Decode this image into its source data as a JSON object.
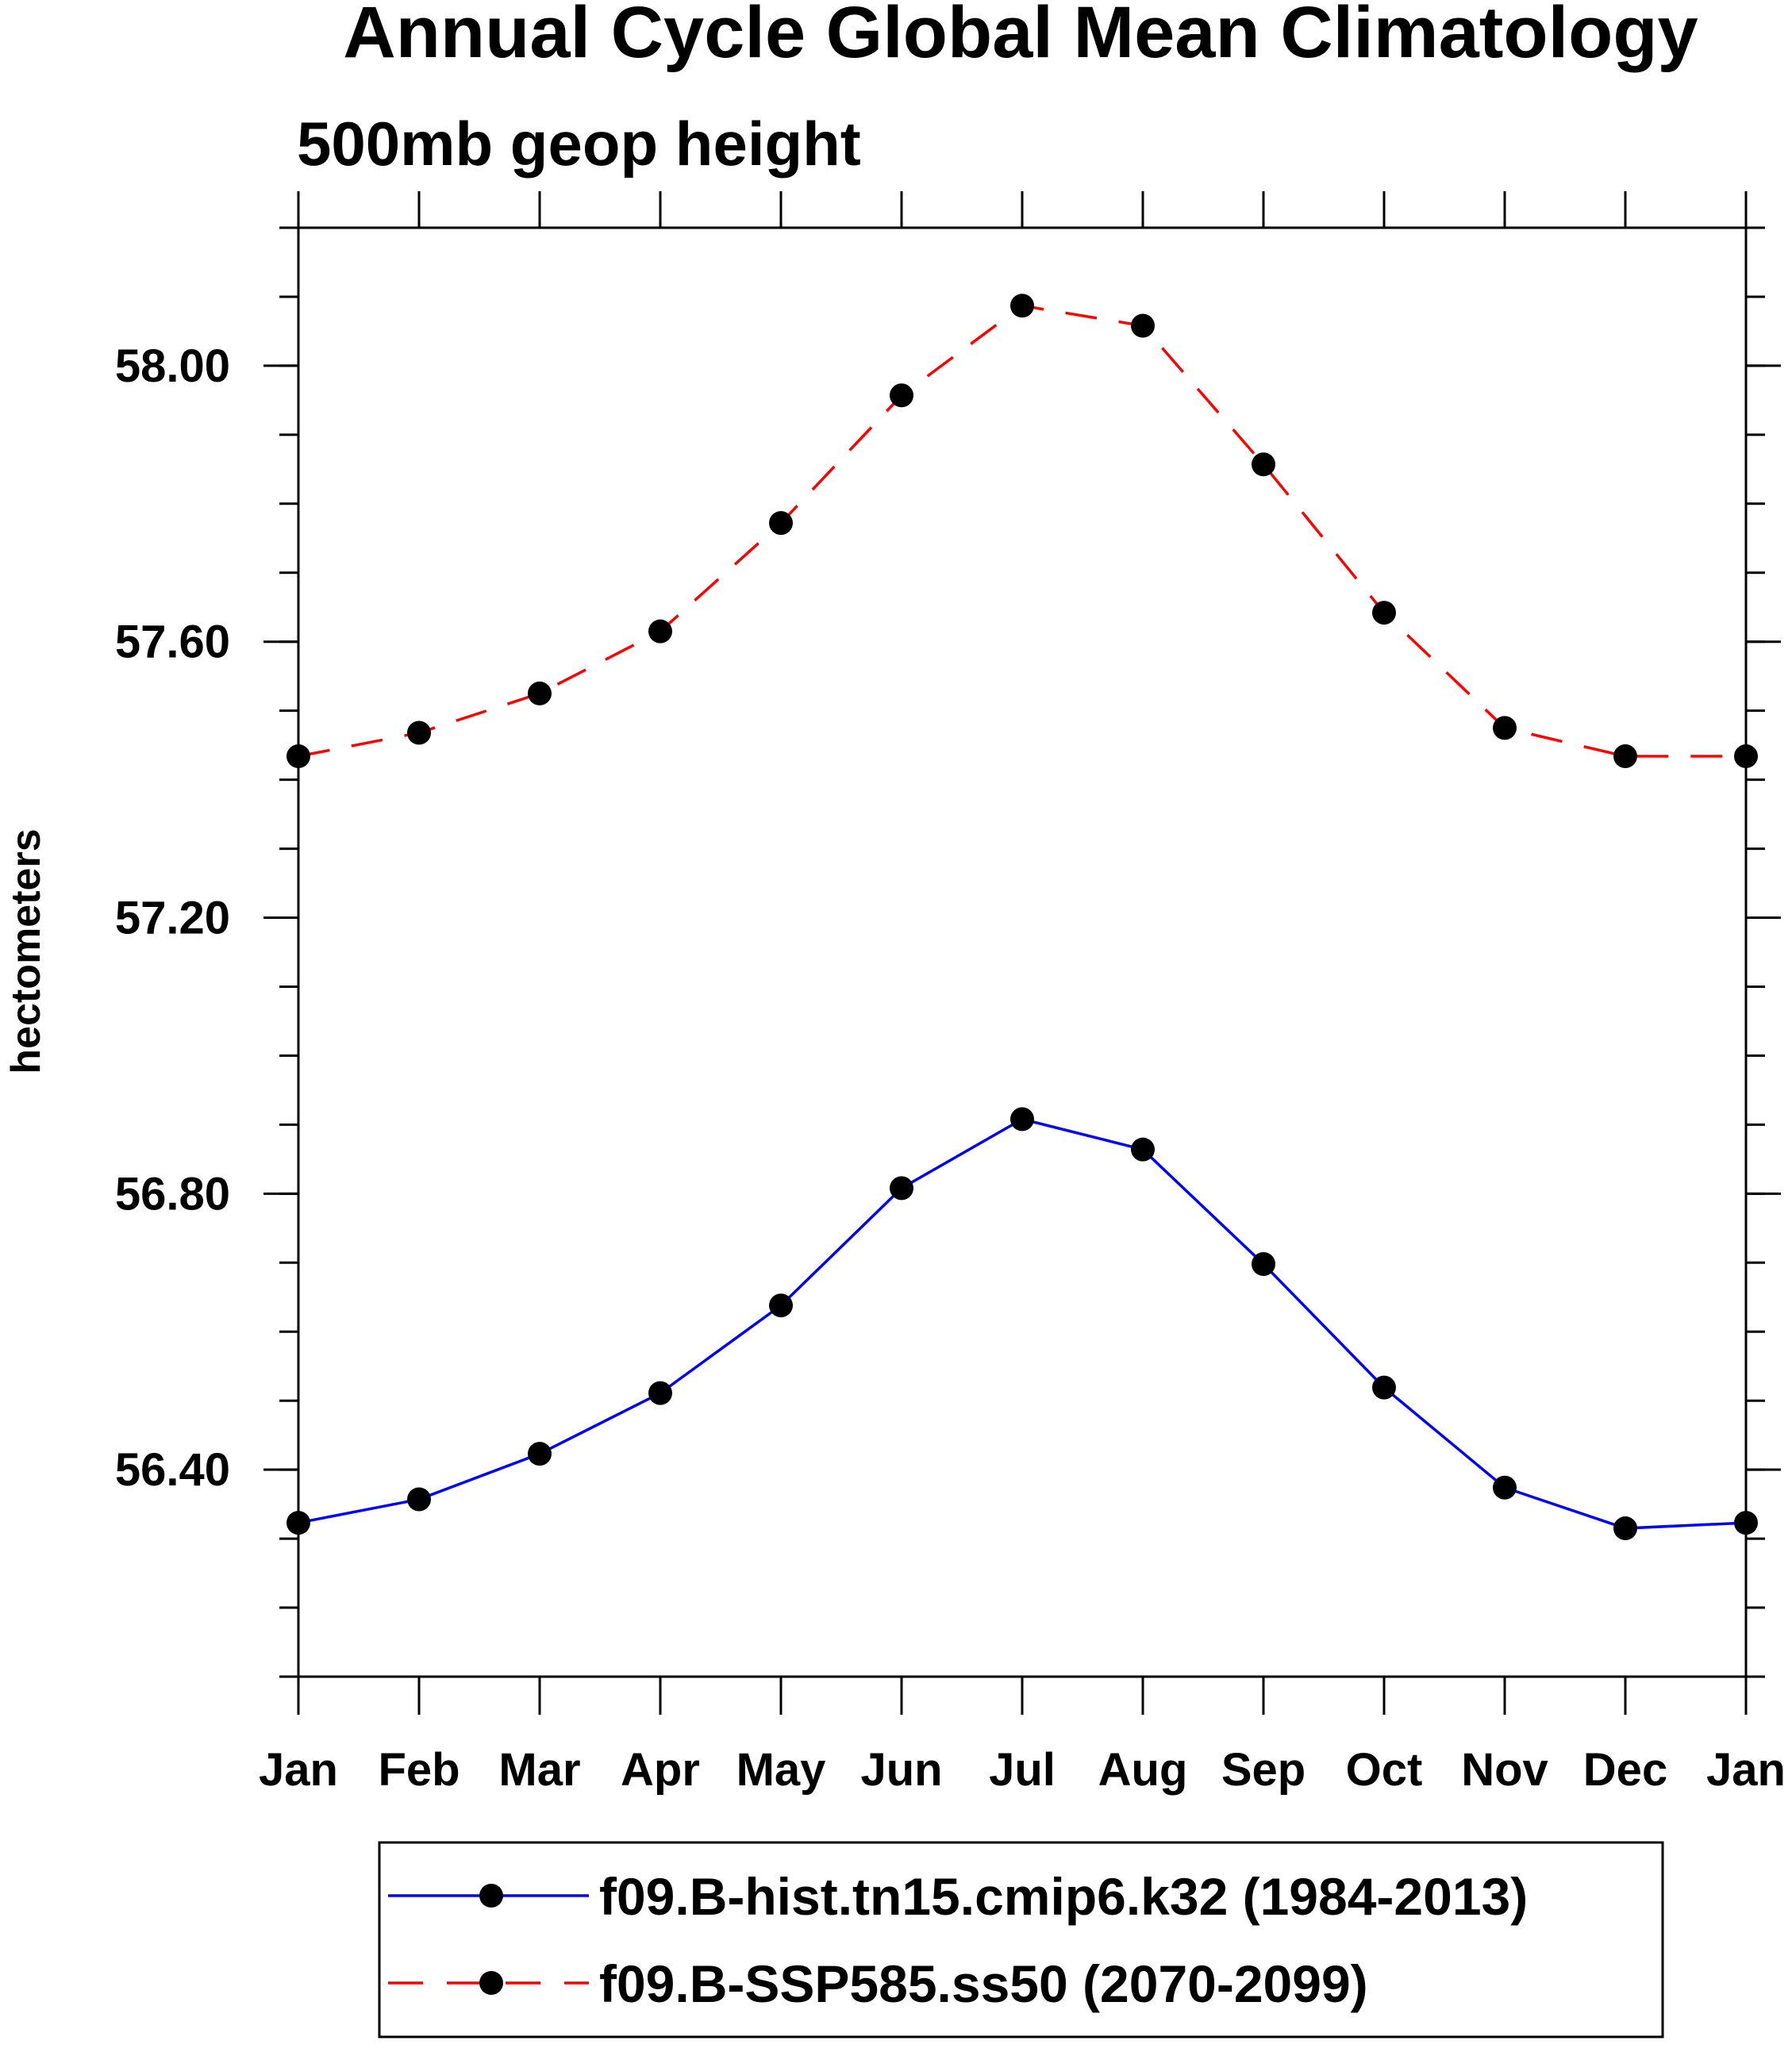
{
  "chart_data": {
    "type": "line",
    "title": "Annual Cycle Global Mean Climatology",
    "subtitle": "500mb geop height",
    "xlabel": "",
    "ylabel": "hectometers",
    "categories": [
      "Jan",
      "Feb",
      "Mar",
      "Apr",
      "May",
      "Jun",
      "Jul",
      "Aug",
      "Sep",
      "Oct",
      "Nov",
      "Dec",
      "Jan"
    ],
    "ylim": [
      56.1,
      58.2
    ],
    "yticks": [
      56.4,
      56.8,
      57.2,
      57.6,
      58.0
    ],
    "ytick_labels": [
      "56.40",
      "56.80",
      "57.20",
      "57.60",
      "58.00"
    ],
    "y_minor_step": 0.1,
    "grid": false,
    "legend_position": "bottom",
    "series": [
      {
        "name": "f09.B-hist.tn15.cmip6.k32 (1984-2013)",
        "color": "#0000ff",
        "dash": "solid",
        "marker": "filled-circle",
        "values": [
          56.323,
          56.357,
          56.423,
          56.511,
          56.638,
          56.808,
          56.908,
          56.864,
          56.698,
          56.519,
          56.374,
          56.315,
          56.323
        ]
      },
      {
        "name": "f09.B-SSP585.ss50 (2070-2099)",
        "color": "#ff0000",
        "dash": "dashed",
        "marker": "filled-circle",
        "values": [
          57.434,
          57.468,
          57.525,
          57.615,
          57.772,
          57.957,
          58.087,
          58.058,
          57.857,
          57.642,
          57.475,
          57.434,
          57.434
        ]
      }
    ]
  }
}
